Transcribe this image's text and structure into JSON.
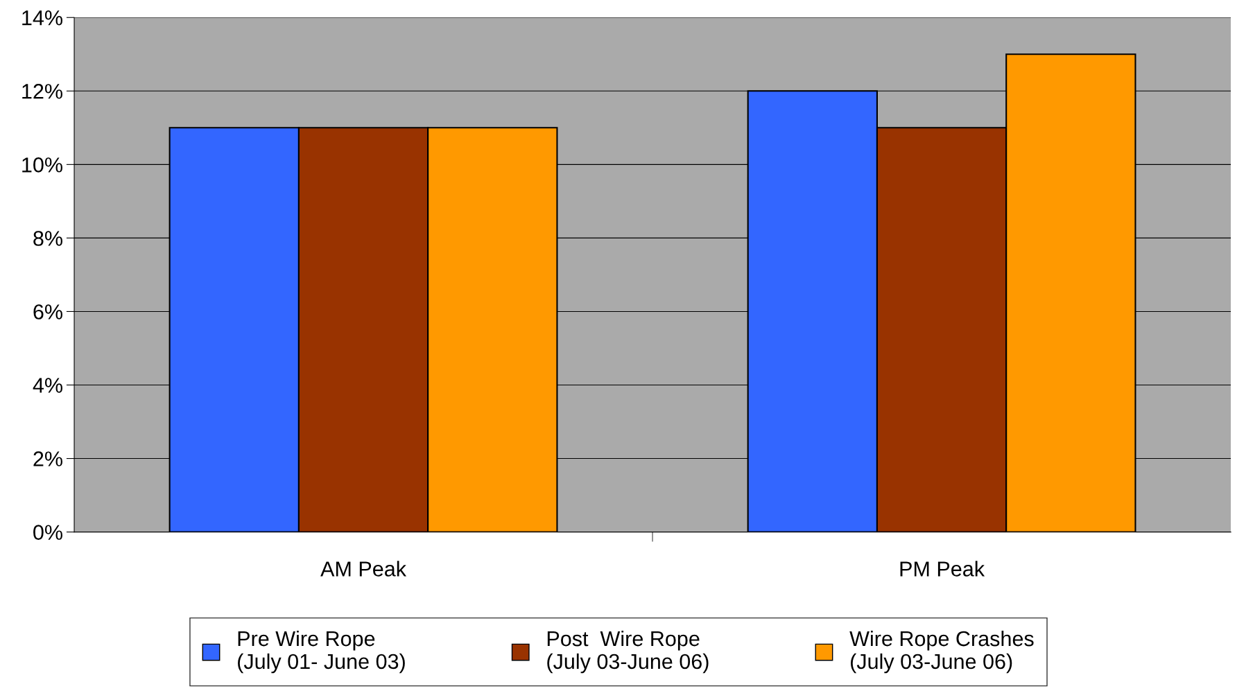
{
  "chart_data": {
    "type": "bar",
    "categories": [
      "AM Peak",
      "PM Peak"
    ],
    "series": [
      {
        "name": "Pre Wire Rope\n(July 01- June 03)",
        "color": "#3366ff",
        "values": [
          11,
          12
        ]
      },
      {
        "name": "Post  Wire Rope\n(July 03-June 06)",
        "color": "#993300",
        "values": [
          11,
          11
        ]
      },
      {
        "name": "Wire Rope Crashes\n(July 03-June 06)",
        "color": "#ff9900",
        "values": [
          11,
          13
        ]
      }
    ],
    "ylim": [
      0,
      14
    ],
    "yticks": [
      {
        "value": 0,
        "label": "0%"
      },
      {
        "value": 2,
        "label": "2%"
      },
      {
        "value": 4,
        "label": "4%"
      },
      {
        "value": 6,
        "label": "6%"
      },
      {
        "value": 8,
        "label": "8%"
      },
      {
        "value": 10,
        "label": "10%"
      },
      {
        "value": 12,
        "label": "12%"
      },
      {
        "value": 14,
        "label": "14%"
      }
    ],
    "grid": "y",
    "legend": "bottom"
  }
}
